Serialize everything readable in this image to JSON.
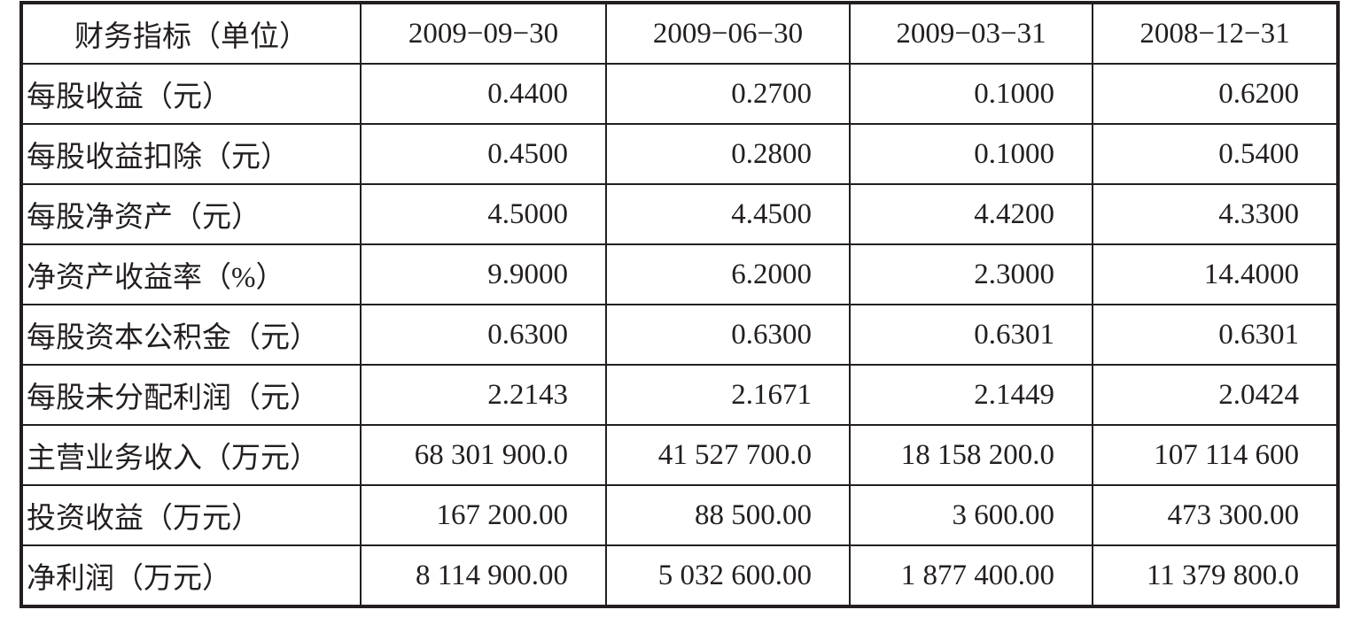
{
  "table": {
    "header": [
      "财务指标（单位）",
      "2009−09−30",
      "2009−06−30",
      "2009−03−31",
      "2008−12−31"
    ],
    "rows": [
      [
        "每股收益（元）",
        "0.4400",
        "0.2700",
        "0.1000",
        "0.6200"
      ],
      [
        "每股收益扣除（元）",
        "0.4500",
        "0.2800",
        "0.1000",
        "0.5400"
      ],
      [
        "每股净资产（元）",
        "4.5000",
        "4.4500",
        "4.4200",
        "4.3300"
      ],
      [
        "净资产收益率（%）",
        "9.9000",
        "6.2000",
        "2.3000",
        "14.4000"
      ],
      [
        "每股资本公积金（元）",
        "0.6300",
        "0.6300",
        "0.6301",
        "0.6301"
      ],
      [
        "每股未分配利润（元）",
        "2.2143",
        "2.1671",
        "2.1449",
        "2.0424"
      ],
      [
        "主营业务收入（万元）",
        "68 301 900.0",
        "41 527 700.0",
        "18 158 200.0",
        "107 114 600"
      ],
      [
        "投资收益（万元）",
        "167 200.00",
        "88 500.00",
        "3 600.00",
        "473 300.00"
      ],
      [
        "净利润（万元）",
        "8 114 900.00",
        "5 032 600.00",
        "1 877 400.00",
        "11 379 800.0"
      ]
    ]
  }
}
